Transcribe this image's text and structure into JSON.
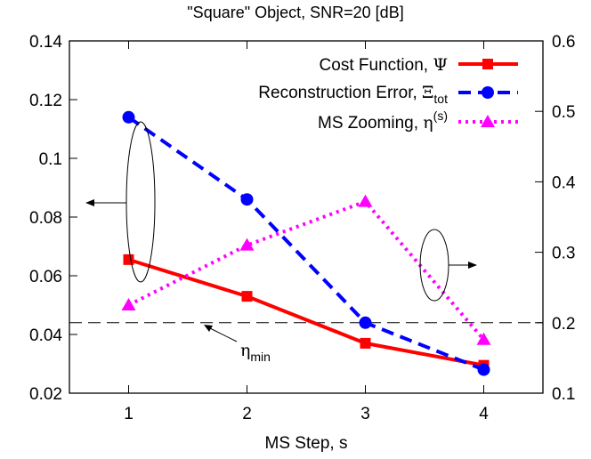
{
  "chart_data": {
    "type": "line",
    "title": "\"Square\" Object, SNR=20 [dB]",
    "xlabel": "MS Step, s",
    "ylabel": "",
    "y2label": "",
    "x": [
      1,
      2,
      3,
      4
    ],
    "x_ticks": [
      "1",
      "2",
      "3",
      "4"
    ],
    "xlim": [
      0.5,
      4.5
    ],
    "ylim": [
      0.02,
      0.14
    ],
    "y_ticks": [
      "0.02",
      "0.04",
      "0.06",
      "0.08",
      "0.1",
      "0.12",
      "0.14"
    ],
    "y2lim": [
      0.1,
      0.6
    ],
    "y2_ticks": [
      "0.1",
      "0.2",
      "0.3",
      "0.4",
      "0.5",
      "0.6"
    ],
    "grid": false,
    "legend_position": "top-right",
    "series": [
      {
        "name": "Cost Function, Ψ",
        "axis": "left",
        "values": [
          0.0655,
          0.053,
          0.037,
          0.0295
        ],
        "color": "#ff0000",
        "line": "solid",
        "marker": "square"
      },
      {
        "name": "Reconstruction Error, Ξtot",
        "axis": "left",
        "values": [
          0.114,
          0.086,
          0.044,
          0.028
        ],
        "color": "#0000ff",
        "line": "dashed",
        "marker": "circle"
      },
      {
        "name": "MS Zooming, η(s)",
        "axis": "right",
        "values": [
          0.225,
          0.31,
          0.372,
          0.176
        ],
        "color": "#ff00ff",
        "line": "dotted",
        "marker": "triangle"
      }
    ],
    "threshold": {
      "axis": "right",
      "value": 0.2,
      "label": "ηmin"
    },
    "legend": {
      "cost_prefix": "Cost Function, ",
      "cost_symbol": "Ψ",
      "err_prefix": "Reconstruction Error, ",
      "err_symbol": "Ξ",
      "err_sub": "tot",
      "zoom_prefix": "MS Zooming, ",
      "zoom_symbol": "η",
      "zoom_sup": "(s)"
    },
    "annotation": {
      "eta": "η",
      "sub": "min"
    }
  }
}
